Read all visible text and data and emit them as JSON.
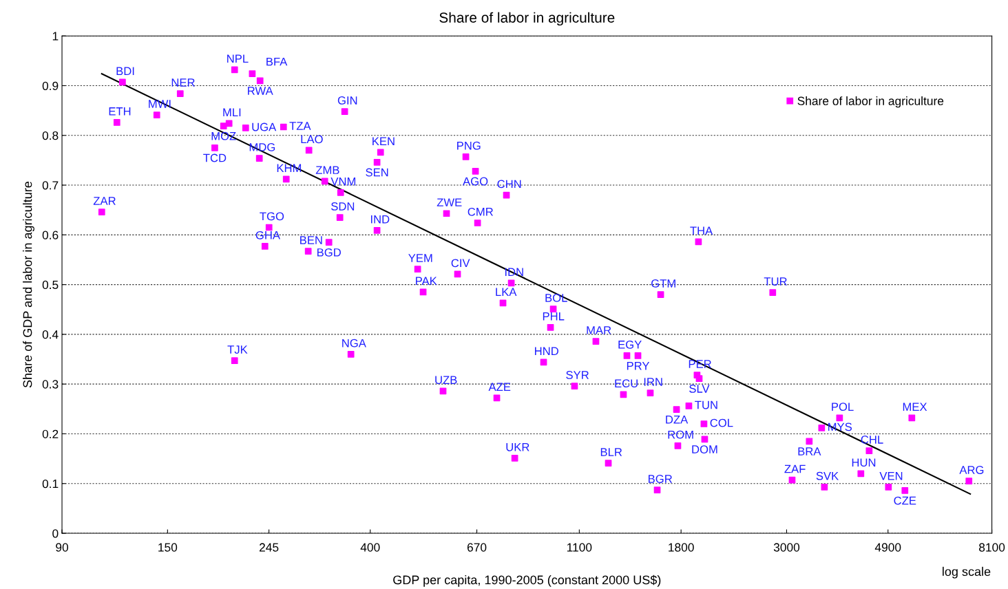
{
  "chart_data": {
    "type": "scatter",
    "title": "Share of labor in agriculture",
    "xlabel": "GDP per capita, 1990-2005 (constant 2000 US$)",
    "ylabel": "Share of GDP and labor in agriculture",
    "log": "x",
    "xlim": [
      90,
      8100
    ],
    "xticks": [
      90,
      150,
      245,
      400,
      670,
      1100,
      1800,
      3000,
      4900,
      8100
    ],
    "ylim": [
      0,
      1
    ],
    "yticks": [
      0,
      0.1,
      0.2,
      0.3,
      0.4,
      0.5,
      0.6,
      0.7,
      0.8,
      0.9,
      1
    ],
    "grid": "y",
    "legend": "top right",
    "marker": "square",
    "series": [
      {
        "name": "Share of labor in agriculture",
        "color": "#ff00ff",
        "x": [
          120.6,
          207.5,
          226,
          234.7,
          159.5,
          117.4,
          142.4,
          196.7,
          202,
          218.9,
          262.9,
          353.5,
          188.5,
          233.9,
          297.3,
          420.5,
          413.4,
          635.3,
          665.6,
          266.4,
          321,
          346.6,
          773.2,
          109.1,
          245.1,
          345.4,
          578.6,
          672.4,
          413.4,
          240.3,
          296.3,
          327.5,
          1958,
          503.2,
          610.3,
          516.7,
          791.6,
          760.4,
          1631,
          2805,
          969.9,
          957,
          1192,
          1362,
          1385,
          1461,
          207.5,
          364.3,
          925.6,
          1075,
          1551,
          569,
          738,
          1945,
          1965,
          1761,
          1869,
          2011,
          2018,
          1772,
          805,
          1266,
          1604,
          3081,
          3602,
          3347,
          3554,
          3876,
          4473,
          4297,
          4910,
          5318,
          5499,
          7249
        ],
        "values": [
          0.907,
          0.932,
          0.924,
          0.91,
          0.884,
          0.826,
          0.841,
          0.819,
          0.824,
          0.815,
          0.817,
          0.848,
          0.775,
          0.754,
          0.77,
          0.766,
          0.746,
          0.757,
          0.728,
          0.712,
          0.708,
          0.685,
          0.68,
          0.646,
          0.615,
          0.635,
          0.643,
          0.624,
          0.609,
          0.577,
          0.567,
          0.585,
          0.586,
          0.531,
          0.521,
          0.485,
          0.503,
          0.463,
          0.48,
          0.484,
          0.451,
          0.414,
          0.386,
          0.279,
          0.357,
          0.357,
          0.347,
          0.36,
          0.344,
          0.296,
          0.282,
          0.286,
          0.272,
          0.318,
          0.311,
          0.249,
          0.256,
          0.22,
          0.189,
          0.176,
          0.151,
          0.141,
          0.087,
          0.107,
          0.093,
          0.185,
          0.212,
          0.232,
          0.166,
          0.12,
          0.093,
          0.086,
          0.232,
          0.105
        ]
      },
      {
        "color": "#000000",
        "type": "line",
        "marker": "none",
        "x": [
          109.1,
          7296
        ],
        "values": [
          0.924,
          0.079
        ]
      }
    ],
    "annotations": [
      {
        "text": "BDI",
        "x": 120.6,
        "y": 0.907
      },
      {
        "text": "NPL",
        "x": 207.5,
        "y": 0.932
      },
      {
        "text": "BFA",
        "x": 226,
        "y": 0.924
      },
      {
        "text": "RWA",
        "x": 234.7,
        "y": 0.91
      },
      {
        "text": "NER",
        "x": 159.5,
        "y": 0.884
      },
      {
        "text": "ETH",
        "x": 117.4,
        "y": 0.826
      },
      {
        "text": "MWI",
        "x": 142.4,
        "y": 0.841
      },
      {
        "text": "MOZ",
        "x": 196.7,
        "y": 0.819
      },
      {
        "text": "MLI",
        "x": 202,
        "y": 0.824
      },
      {
        "text": "UGA",
        "x": 218.9,
        "y": 0.815
      },
      {
        "text": "TZA",
        "x": 262.9,
        "y": 0.817
      },
      {
        "text": "GIN",
        "x": 353.5,
        "y": 0.848
      },
      {
        "text": "TCD",
        "x": 188.5,
        "y": 0.775
      },
      {
        "text": "MDG",
        "x": 233.9,
        "y": 0.754
      },
      {
        "text": "LAO",
        "x": 297.3,
        "y": 0.77
      },
      {
        "text": "KEN",
        "x": 420.5,
        "y": 0.766
      },
      {
        "text": "SEN",
        "x": 413.4,
        "y": 0.746
      },
      {
        "text": "PNG",
        "x": 635.3,
        "y": 0.757
      },
      {
        "text": "AGO",
        "x": 665.6,
        "y": 0.728
      },
      {
        "text": "KHM",
        "x": 266.4,
        "y": 0.712
      },
      {
        "text": "ZMB",
        "x": 321,
        "y": 0.708
      },
      {
        "text": "VNM",
        "x": 346.6,
        "y": 0.685
      },
      {
        "text": "CHN",
        "x": 773.2,
        "y": 0.68
      },
      {
        "text": "ZAR",
        "x": 109.1,
        "y": 0.646
      },
      {
        "text": "TGO",
        "x": 245.1,
        "y": 0.615
      },
      {
        "text": "SDN",
        "x": 345.4,
        "y": 0.635
      },
      {
        "text": "ZWE",
        "x": 578.6,
        "y": 0.643
      },
      {
        "text": "CMR",
        "x": 672.4,
        "y": 0.624
      },
      {
        "text": "IND",
        "x": 413.4,
        "y": 0.609
      },
      {
        "text": "GHA",
        "x": 240.3,
        "y": 0.577
      },
      {
        "text": "BEN",
        "x": 296.3,
        "y": 0.567
      },
      {
        "text": "BGD",
        "x": 327.5,
        "y": 0.585
      },
      {
        "text": "THA",
        "x": 1958,
        "y": 0.586
      },
      {
        "text": "YEM",
        "x": 503.2,
        "y": 0.531
      },
      {
        "text": "CIV",
        "x": 610.3,
        "y": 0.521
      },
      {
        "text": "PAK",
        "x": 516.7,
        "y": 0.485
      },
      {
        "text": "IDN",
        "x": 791.6,
        "y": 0.503
      },
      {
        "text": "LKA",
        "x": 760.4,
        "y": 0.463
      },
      {
        "text": "GTM",
        "x": 1631,
        "y": 0.48
      },
      {
        "text": "TUR",
        "x": 2805,
        "y": 0.484
      },
      {
        "text": "BOL",
        "x": 969.9,
        "y": 0.451
      },
      {
        "text": "PHL",
        "x": 957,
        "y": 0.414
      },
      {
        "text": "MAR",
        "x": 1192,
        "y": 0.386
      },
      {
        "text": "ECU",
        "x": 1362,
        "y": 0.279
      },
      {
        "text": "EGY",
        "x": 1385,
        "y": 0.357
      },
      {
        "text": "PRY",
        "x": 1461,
        "y": 0.357
      },
      {
        "text": "TJK",
        "x": 207.5,
        "y": 0.347
      },
      {
        "text": "NGA",
        "x": 364.3,
        "y": 0.36
      },
      {
        "text": "HND",
        "x": 925.6,
        "y": 0.344
      },
      {
        "text": "SYR",
        "x": 1075,
        "y": 0.296
      },
      {
        "text": "IRN",
        "x": 1551,
        "y": 0.282
      },
      {
        "text": "UZB",
        "x": 569,
        "y": 0.286
      },
      {
        "text": "AZE",
        "x": 738,
        "y": 0.272
      },
      {
        "text": "PER",
        "x": 1945,
        "y": 0.318
      },
      {
        "text": "SLV",
        "x": 1965,
        "y": 0.311
      },
      {
        "text": "DZA",
        "x": 1761,
        "y": 0.249
      },
      {
        "text": "TUN",
        "x": 1869,
        "y": 0.256
      },
      {
        "text": "COL",
        "x": 2011,
        "y": 0.22
      },
      {
        "text": "DOM",
        "x": 2018,
        "y": 0.189
      },
      {
        "text": "ROM",
        "x": 1772,
        "y": 0.176
      },
      {
        "text": "UKR",
        "x": 805,
        "y": 0.151
      },
      {
        "text": "BLR",
        "x": 1266,
        "y": 0.141
      },
      {
        "text": "BGR",
        "x": 1604,
        "y": 0.087
      },
      {
        "text": "ZAF",
        "x": 3081,
        "y": 0.107
      },
      {
        "text": "SVK",
        "x": 3602,
        "y": 0.093
      },
      {
        "text": "BRA",
        "x": 3347,
        "y": 0.185
      },
      {
        "text": "MYS",
        "x": 3554,
        "y": 0.212
      },
      {
        "text": "POL",
        "x": 3876,
        "y": 0.232
      },
      {
        "text": "CHL",
        "x": 4473,
        "y": 0.166
      },
      {
        "text": "HUN",
        "x": 4297,
        "y": 0.12
      },
      {
        "text": "VEN",
        "x": 4910,
        "y": 0.093
      },
      {
        "text": "CZE",
        "x": 5318,
        "y": 0.086
      },
      {
        "text": "MEX",
        "x": 5499,
        "y": 0.232
      },
      {
        "text": "ARG",
        "x": 7249,
        "y": 0.105
      },
      "log scale"
    ]
  }
}
